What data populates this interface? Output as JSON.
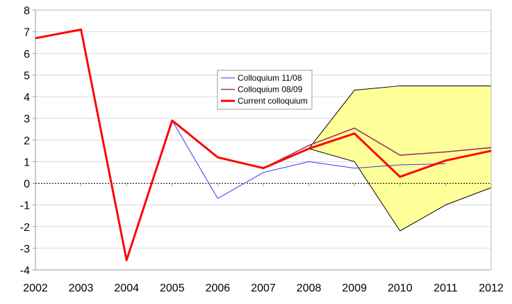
{
  "chart_data": {
    "type": "line",
    "title": "",
    "xlabel": "",
    "ylabel": "",
    "x": [
      2002,
      2003,
      2004,
      2005,
      2006,
      2007,
      2008,
      2009,
      2010,
      2011,
      2012
    ],
    "ylim": [
      -4,
      8
    ],
    "yticks": [
      8,
      7,
      6,
      5,
      4,
      3,
      2,
      1,
      0,
      -1,
      -2,
      -3,
      -4
    ],
    "xticks": [
      "2002",
      "2003",
      "2004",
      "2005",
      "2006",
      "2007",
      "2008",
      "2009",
      "2010",
      "2011",
      "2012"
    ],
    "grid": true,
    "legend_position": "center",
    "band": {
      "x": [
        2008,
        2009,
        2010,
        2011,
        2012
      ],
      "upper": [
        1.6,
        4.3,
        4.5,
        4.5,
        4.5
      ],
      "lower": [
        1.6,
        1.0,
        -2.2,
        -1.0,
        -0.2
      ],
      "color": "#FFFF99"
    },
    "series": [
      {
        "name": "Colloquium 11/08",
        "color": "#3333FF",
        "values": [
          6.7,
          7.1,
          -3.55,
          2.9,
          -0.7,
          0.5,
          1.0,
          0.7,
          0.85,
          0.9,
          null
        ]
      },
      {
        "name": "Colloquium 08/09",
        "color": "#993366",
        "values": [
          6.7,
          7.1,
          -3.55,
          2.9,
          1.2,
          0.7,
          1.75,
          2.55,
          1.3,
          1.45,
          1.65
        ]
      },
      {
        "name": "Current colloquium",
        "color": "#FF0000",
        "values": [
          6.7,
          7.1,
          -3.55,
          2.9,
          1.2,
          0.7,
          1.6,
          2.3,
          0.3,
          1.05,
          1.5
        ]
      }
    ]
  }
}
